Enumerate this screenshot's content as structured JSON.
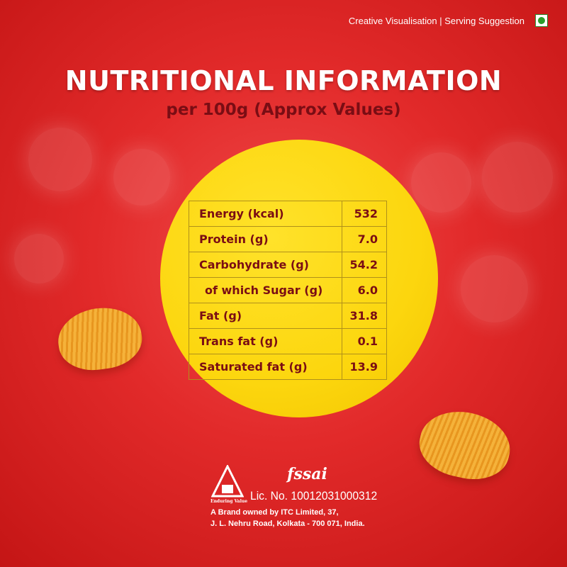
{
  "header": {
    "note": "Creative Visualisation | Serving Suggestion",
    "veg_mark_icon": "veg-symbol-icon"
  },
  "title": "NUTRITIONAL INFORMATION",
  "subtitle": "per 100g (Approx Values)",
  "nutrition": [
    {
      "label": "Energy (kcal)",
      "value": "532"
    },
    {
      "label": "Protein (g)",
      "value": "7.0"
    },
    {
      "label": "Carbohydrate (g)",
      "value": "54.2"
    },
    {
      "label": "of which Sugar (g)",
      "value": "6.0"
    },
    {
      "label": "Fat (g)",
      "value": "31.8"
    },
    {
      "label": "Trans fat (g)",
      "value": "0.1"
    },
    {
      "label": "Saturated fat (g)",
      "value": "13.9"
    }
  ],
  "footer": {
    "itc_tagline": "Enduring Value",
    "fssai_logo": "fssai",
    "license": "Lic. No. 10012031000312",
    "address_line1": "A Brand owned by ITC Limited, 37,",
    "address_line2": "J. L. Nehru Road, Kolkata - 700 071, India."
  },
  "colors": {
    "background": "#e22a2a",
    "circle": "#fcd60e",
    "text_dark": "#7a0d14"
  }
}
